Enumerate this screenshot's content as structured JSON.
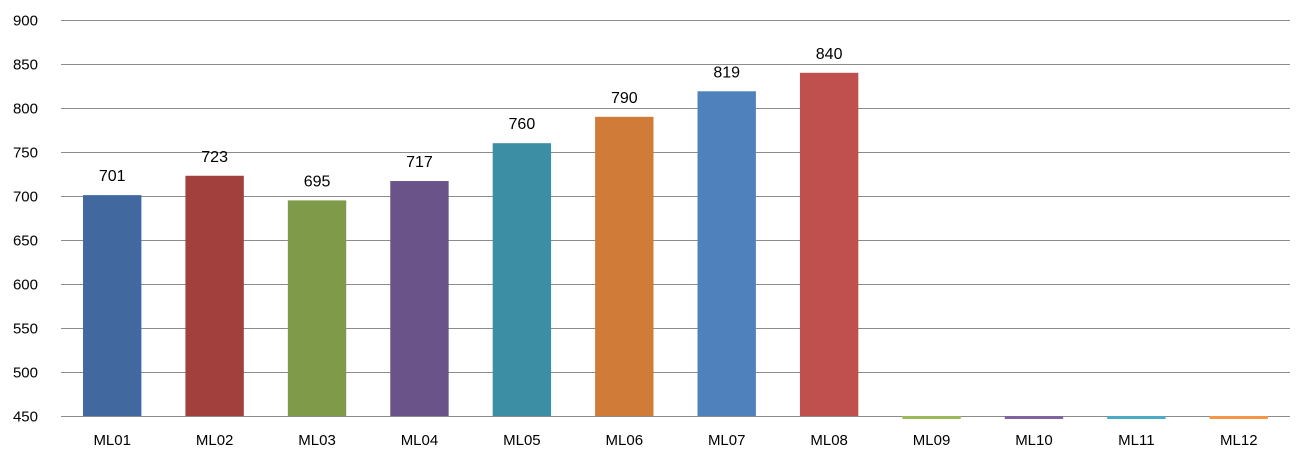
{
  "chart_data": {
    "type": "bar",
    "title": "",
    "xlabel": "",
    "ylabel": "",
    "categories": [
      "ML01",
      "ML02",
      "ML03",
      "ML04",
      "ML05",
      "ML06",
      "ML07",
      "ML08",
      "ML09",
      "ML10",
      "ML11",
      "ML12"
    ],
    "values": [
      701,
      723,
      695,
      717,
      760,
      790,
      819,
      840,
      null,
      null,
      null,
      null
    ],
    "data_labels": [
      "701",
      "723",
      "695",
      "717",
      "760",
      "790",
      "819",
      "840",
      "",
      "",
      "",
      ""
    ],
    "ylim": [
      450,
      900
    ],
    "yticks": [
      450,
      500,
      550,
      600,
      650,
      700,
      750,
      800,
      850,
      900
    ],
    "grid": true,
    "legend": "none",
    "colors": [
      "#4169a0",
      "#a2403e",
      "#7f9a48",
      "#6a5389",
      "#3c8ea5",
      "#d07c38",
      "#4f81bd",
      "#c0504d",
      "#9bbb59",
      "#8064a2",
      "#4bacc6",
      "#f79646"
    ]
  }
}
